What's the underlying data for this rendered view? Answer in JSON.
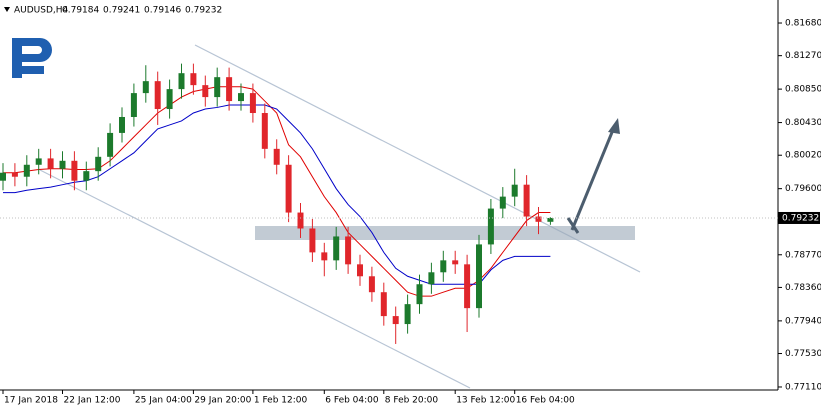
{
  "chart_data": {
    "type": "candlestick",
    "symbol": "AUDUSD,H4",
    "categories": [
      "17 Jan 2018",
      null,
      null,
      null,
      null,
      "22 Jan 12:00",
      null,
      null,
      null,
      null,
      null,
      "25 Jan 04:00",
      null,
      null,
      null,
      null,
      "29 Jan 20:00",
      null,
      null,
      null,
      null,
      "1 Feb 12:00",
      null,
      null,
      null,
      null,
      null,
      "6 Feb 04:00",
      null,
      null,
      null,
      null,
      "8 Feb 20:00",
      null,
      null,
      null,
      null,
      null,
      "13 Feb 12:00",
      null,
      null,
      null,
      null,
      "16 Feb 04:00",
      null,
      null,
      null
    ],
    "open": [
      0.797,
      0.798,
      0.7975,
      0.799,
      0.7998,
      0.7985,
      0.7995,
      0.797,
      0.7982,
      0.8,
      0.803,
      0.805,
      0.808,
      0.8095,
      0.806,
      0.8085,
      0.8105,
      0.809,
      0.8075,
      0.81,
      0.807,
      0.808,
      0.8055,
      0.801,
      0.799,
      0.793,
      0.791,
      0.788,
      0.787,
      0.79,
      0.7865,
      0.785,
      0.783,
      0.78,
      0.779,
      0.7815,
      0.784,
      0.7855,
      0.787,
      0.7865,
      0.781,
      0.789,
      0.7935,
      0.795,
      0.7965,
      0.7925,
      0.79184
    ],
    "high": [
      0.7992,
      0.7992,
      0.8002,
      0.801,
      0.801,
      0.8007,
      0.8007,
      0.7994,
      0.8012,
      0.8042,
      0.8062,
      0.8092,
      0.8115,
      0.8107,
      0.8097,
      0.8117,
      0.8117,
      0.8102,
      0.8112,
      0.8112,
      0.8092,
      0.8092,
      0.8067,
      0.8022,
      0.8002,
      0.7942,
      0.7922,
      0.7892,
      0.7912,
      0.7912,
      0.7877,
      0.7862,
      0.7842,
      0.7812,
      0.7827,
      0.7852,
      0.7867,
      0.7882,
      0.7882,
      0.7877,
      0.7902,
      0.7947,
      0.7962,
      0.7985,
      0.7977,
      0.7937,
      0.79241
    ],
    "low": [
      0.7958,
      0.7963,
      0.7963,
      0.7978,
      0.7973,
      0.7973,
      0.7958,
      0.7958,
      0.797,
      0.7988,
      0.8018,
      0.8038,
      0.8068,
      0.804,
      0.8048,
      0.8073,
      0.8078,
      0.8063,
      0.8063,
      0.8058,
      0.8058,
      0.8043,
      0.7998,
      0.7978,
      0.7918,
      0.7898,
      0.7868,
      0.785,
      0.7858,
      0.7853,
      0.7838,
      0.7818,
      0.7788,
      0.7765,
      0.7778,
      0.7803,
      0.7828,
      0.7843,
      0.7853,
      0.778,
      0.7798,
      0.7878,
      0.7923,
      0.7938,
      0.7913,
      0.7903,
      0.79146
    ],
    "close": [
      0.798,
      0.7975,
      0.799,
      0.7998,
      0.7985,
      0.7995,
      0.797,
      0.7982,
      0.8,
      0.803,
      0.805,
      0.808,
      0.8095,
      0.806,
      0.8085,
      0.8105,
      0.809,
      0.8075,
      0.81,
      0.807,
      0.808,
      0.8055,
      0.801,
      0.799,
      0.793,
      0.791,
      0.788,
      0.787,
      0.79,
      0.7865,
      0.785,
      0.783,
      0.78,
      0.779,
      0.7815,
      0.784,
      0.7855,
      0.787,
      0.7865,
      0.781,
      0.789,
      0.7935,
      0.795,
      0.7965,
      0.7925,
      0.79184,
      0.79232
    ],
    "up_color": "#1c7a2c",
    "down_color": "#e0262b",
    "indicator_lines": [
      {
        "color": "#e00000",
        "values": [
          0.798,
          0.798,
          0.7982,
          0.7984,
          0.7985,
          0.7985,
          0.7984,
          0.7984,
          0.7985,
          0.7995,
          0.801,
          0.8025,
          0.804,
          0.8055,
          0.8065,
          0.8075,
          0.8082,
          0.8085,
          0.8088,
          0.8088,
          0.8088,
          0.8085,
          0.807,
          0.8055,
          0.8015,
          0.8,
          0.7975,
          0.795,
          0.793,
          0.7905,
          0.789,
          0.7875,
          0.786,
          0.7845,
          0.783,
          0.7825,
          0.7825,
          0.783,
          0.7835,
          0.7835,
          0.7845,
          0.786,
          0.788,
          0.79,
          0.792,
          0.793,
          0.793
        ]
      },
      {
        "color": "#0000c8",
        "values": [
          0.7955,
          0.7955,
          0.7958,
          0.796,
          0.7962,
          0.7965,
          0.7968,
          0.797,
          0.7975,
          0.7985,
          0.7995,
          0.8005,
          0.802,
          0.8035,
          0.804,
          0.8045,
          0.8055,
          0.806,
          0.8062,
          0.8065,
          0.8065,
          0.8065,
          0.8065,
          0.806,
          0.8045,
          0.803,
          0.801,
          0.7985,
          0.796,
          0.794,
          0.7925,
          0.7905,
          0.788,
          0.786,
          0.785,
          0.7845,
          0.784,
          0.784,
          0.784,
          0.784,
          0.784,
          0.7858,
          0.787,
          0.7875,
          0.7875,
          0.7875,
          0.7875
        ]
      }
    ],
    "current_price": 0.79232,
    "ylim": [
      0.77072,
      0.81969
    ],
    "yticks": [
      {
        "value": 0.8168,
        "label": "0.81680"
      },
      {
        "value": 0.8127,
        "label": "0.81270"
      },
      {
        "value": 0.8085,
        "label": "0.80850"
      },
      {
        "value": 0.8043,
        "label": "0.80430"
      },
      {
        "value": 0.8002,
        "label": "0.80020"
      },
      {
        "value": 0.796,
        "label": "0.79600"
      },
      {
        "value": 0.7877,
        "label": "0.78770"
      },
      {
        "value": 0.7836,
        "label": "0.78360"
      },
      {
        "value": 0.7794,
        "label": "0.77940"
      },
      {
        "value": 0.7753,
        "label": "0.77530"
      },
      {
        "value": 0.7711,
        "label": "0.77110"
      }
    ]
  }
}
